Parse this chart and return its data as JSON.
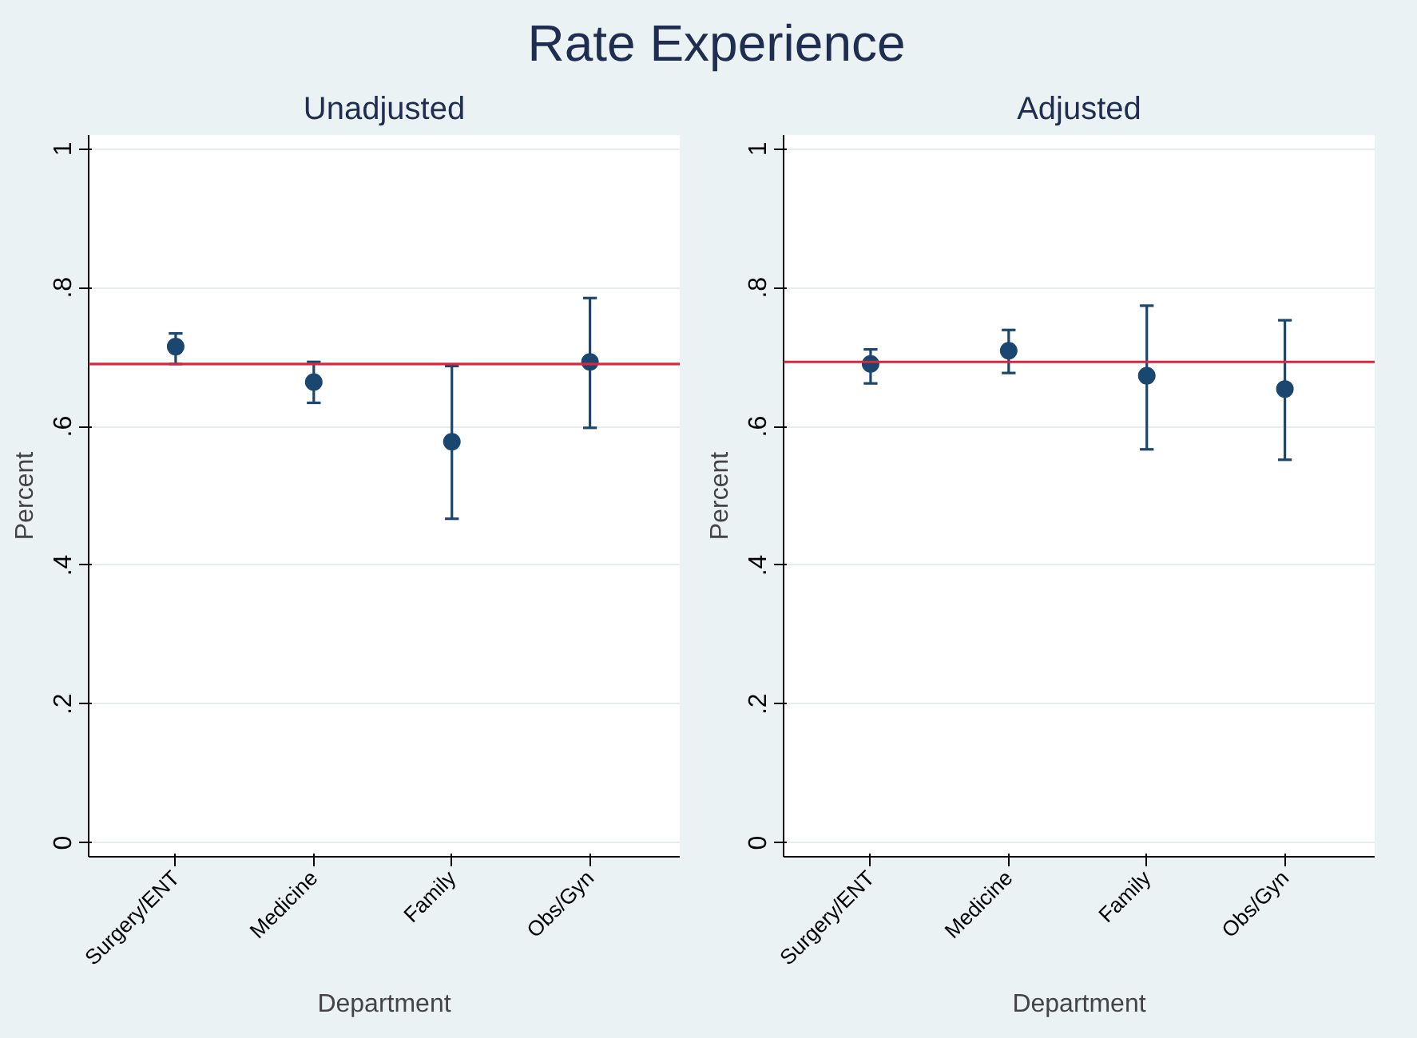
{
  "chart_data": [
    {
      "type": "scatter",
      "title": "Unadjusted",
      "xlabel": "Department",
      "ylabel": "Percent",
      "annotations": [
        "Rate Experience"
      ],
      "categories": [
        "Surgery/ENT",
        "Medicine",
        "Family",
        "Obs/Gyn"
      ],
      "series": [
        {
          "color": "#1a476f",
          "values": [
            0.715,
            0.664,
            0.578,
            0.693
          ],
          "errors": [
            [
              0.69,
              0.734
            ],
            [
              0.634,
              0.693
            ],
            [
              0.467,
              0.687
            ],
            [
              0.598,
              0.785
            ]
          ]
        }
      ],
      "ylim": [
        -0.02,
        1.02
      ],
      "yticks": [
        0,
        {
          "value": 0.2,
          "label": ".2"
        },
        {
          "value": 0.4,
          "label": ".4"
        },
        {
          "value": 0.6,
          "label": ".6"
        },
        {
          "value": 0.8,
          "label": ".8"
        },
        1
      ],
      "ref_lines": [
        {
          "axis": "y",
          "value": 0.69,
          "color": "#d6283e"
        }
      ],
      "grid": "y",
      "marker": "circle"
    },
    {
      "type": "scatter",
      "title": "Adjusted",
      "xlabel": "Department",
      "ylabel": "Percent",
      "categories": [
        "Surgery/ENT",
        "Medicine",
        "Family",
        "Obs/Gyn"
      ],
      "series": [
        {
          "color": "#1a476f",
          "values": [
            0.69,
            0.709,
            0.673,
            0.654
          ],
          "errors": [
            [
              0.662,
              0.711
            ],
            [
              0.677,
              0.739
            ],
            [
              0.567,
              0.774
            ],
            [
              0.552,
              0.753
            ]
          ]
        }
      ],
      "ylim": [
        -0.02,
        1.02
      ],
      "yticks": [
        0,
        {
          "value": 0.2,
          "label": ".2"
        },
        {
          "value": 0.4,
          "label": ".4"
        },
        {
          "value": 0.6,
          "label": ".6"
        },
        {
          "value": 0.8,
          "label": ".8"
        },
        1
      ],
      "ref_lines": [
        {
          "axis": "y",
          "value": 0.693,
          "color": "#d6283e"
        }
      ],
      "grid": "y",
      "marker": "circle"
    }
  ]
}
